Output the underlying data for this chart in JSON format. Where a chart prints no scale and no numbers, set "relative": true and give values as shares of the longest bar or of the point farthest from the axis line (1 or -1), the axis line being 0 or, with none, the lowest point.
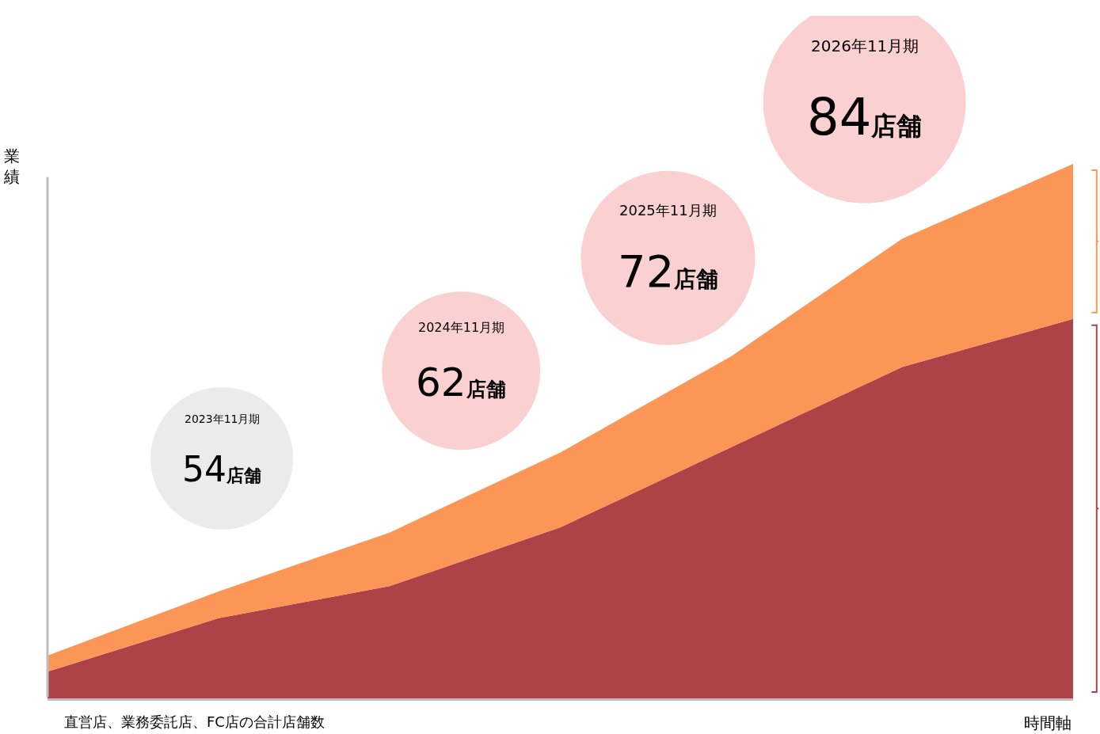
{
  "chart_data": {
    "type": "area",
    "stacked": true,
    "relative": true,
    "ylabel": "業績",
    "xlabel": "時間軸",
    "categories": [
      null,
      null,
      null,
      null,
      null,
      null,
      null
    ],
    "series": [
      {
        "color": "#ae4246",
        "values": [
          0.05,
          0.15,
          0.21,
          0.32,
          0.47,
          0.62,
          0.71
        ]
      },
      {
        "color": "#fb9656",
        "values": [
          0.03,
          0.05,
          0.1,
          0.14,
          0.17,
          0.24,
          0.29
        ]
      }
    ],
    "annotations": [
      "2023年11月期",
      "54店舗",
      "2024年11月期",
      "62店舗",
      "2025年11月期",
      "72店舗",
      "2026年11月期",
      "84店舗",
      "直営店、業務委託店、FC店の合計店舗数"
    ]
  }
}
